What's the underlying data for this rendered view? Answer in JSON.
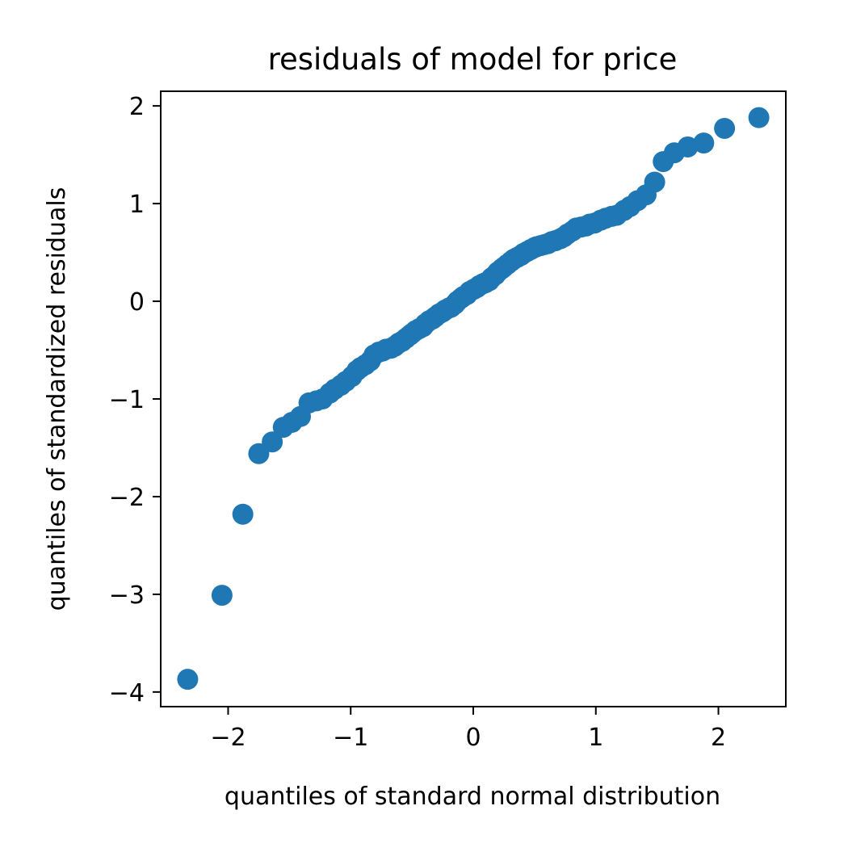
{
  "chart_data": {
    "type": "scatter",
    "title": "residuals of model for price",
    "xlabel": "quantiles of standard normal distribution",
    "ylabel": "quantiles of standardized residuals",
    "xlim": [
      -2.55,
      2.55
    ],
    "ylim": [
      -4.15,
      2.15
    ],
    "x_ticks": [
      -2,
      -1,
      0,
      1,
      2
    ],
    "x_tick_labels": [
      "−2",
      "−1",
      "0",
      "1",
      "2"
    ],
    "y_ticks": [
      -4,
      -3,
      -2,
      -1,
      0,
      1,
      2
    ],
    "y_tick_labels": [
      "−4",
      "−3",
      "−2",
      "−1",
      "0",
      "1",
      "2"
    ],
    "grid": false,
    "marker_color": "#1f77b4",
    "points": [
      [
        -2.33,
        -3.87
      ],
      [
        -2.05,
        -3.01
      ],
      [
        -1.88,
        -2.18
      ],
      [
        -1.75,
        -1.56
      ],
      [
        -1.64,
        -1.44
      ],
      [
        -1.55,
        -1.29
      ],
      [
        -1.48,
        -1.24
      ],
      [
        -1.41,
        -1.18
      ],
      [
        -1.34,
        -1.04
      ],
      [
        -1.28,
        -1.02
      ],
      [
        -1.23,
        -1.0
      ],
      [
        -1.17,
        -0.94
      ],
      [
        -1.13,
        -0.9
      ],
      [
        -1.08,
        -0.86
      ],
      [
        -1.04,
        -0.82
      ],
      [
        -0.99,
        -0.77
      ],
      [
        -0.95,
        -0.71
      ],
      [
        -0.92,
        -0.68
      ],
      [
        -0.88,
        -0.65
      ],
      [
        -0.84,
        -0.61
      ],
      [
        -0.81,
        -0.55
      ],
      [
        -0.77,
        -0.52
      ],
      [
        -0.74,
        -0.51
      ],
      [
        -0.71,
        -0.49
      ],
      [
        -0.67,
        -0.48
      ],
      [
        -0.64,
        -0.46
      ],
      [
        -0.61,
        -0.43
      ],
      [
        -0.58,
        -0.41
      ],
      [
        -0.55,
        -0.38
      ],
      [
        -0.52,
        -0.35
      ],
      [
        -0.5,
        -0.33
      ],
      [
        -0.47,
        -0.3
      ],
      [
        -0.44,
        -0.28
      ],
      [
        -0.41,
        -0.26
      ],
      [
        -0.39,
        -0.23
      ],
      [
        -0.36,
        -0.2
      ],
      [
        -0.33,
        -0.18
      ],
      [
        -0.31,
        -0.16
      ],
      [
        -0.28,
        -0.13
      ],
      [
        -0.25,
        -0.11
      ],
      [
        -0.23,
        -0.09
      ],
      [
        -0.2,
        -0.07
      ],
      [
        -0.18,
        -0.06
      ],
      [
        -0.15,
        -0.03
      ],
      [
        -0.13,
        0.0
      ],
      [
        -0.1,
        0.03
      ],
      [
        -0.08,
        0.05
      ],
      [
        -0.05,
        0.07
      ],
      [
        -0.03,
        0.1
      ],
      [
        0.0,
        0.12
      ],
      [
        0.03,
        0.14
      ],
      [
        0.05,
        0.16
      ],
      [
        0.08,
        0.18
      ],
      [
        0.1,
        0.19
      ],
      [
        0.13,
        0.21
      ],
      [
        0.15,
        0.24
      ],
      [
        0.18,
        0.27
      ],
      [
        0.2,
        0.3
      ],
      [
        0.23,
        0.33
      ],
      [
        0.25,
        0.35
      ],
      [
        0.28,
        0.38
      ],
      [
        0.31,
        0.41
      ],
      [
        0.33,
        0.43
      ],
      [
        0.36,
        0.45
      ],
      [
        0.39,
        0.47
      ],
      [
        0.41,
        0.49
      ],
      [
        0.44,
        0.51
      ],
      [
        0.47,
        0.53
      ],
      [
        0.5,
        0.55
      ],
      [
        0.52,
        0.56
      ],
      [
        0.55,
        0.57
      ],
      [
        0.58,
        0.58
      ],
      [
        0.61,
        0.59
      ],
      [
        0.64,
        0.61
      ],
      [
        0.67,
        0.62
      ],
      [
        0.71,
        0.64
      ],
      [
        0.74,
        0.66
      ],
      [
        0.77,
        0.69
      ],
      [
        0.81,
        0.72
      ],
      [
        0.84,
        0.75
      ],
      [
        0.88,
        0.76
      ],
      [
        0.92,
        0.77
      ],
      [
        0.95,
        0.79
      ],
      [
        0.99,
        0.8
      ],
      [
        1.04,
        0.83
      ],
      [
        1.08,
        0.85
      ],
      [
        1.13,
        0.87
      ],
      [
        1.17,
        0.88
      ],
      [
        1.23,
        0.93
      ],
      [
        1.28,
        0.97
      ],
      [
        1.34,
        1.03
      ],
      [
        1.41,
        1.09
      ],
      [
        1.48,
        1.22
      ],
      [
        1.55,
        1.43
      ],
      [
        1.64,
        1.52
      ],
      [
        1.75,
        1.58
      ],
      [
        1.88,
        1.62
      ],
      [
        2.05,
        1.77
      ],
      [
        2.33,
        1.88
      ]
    ]
  }
}
